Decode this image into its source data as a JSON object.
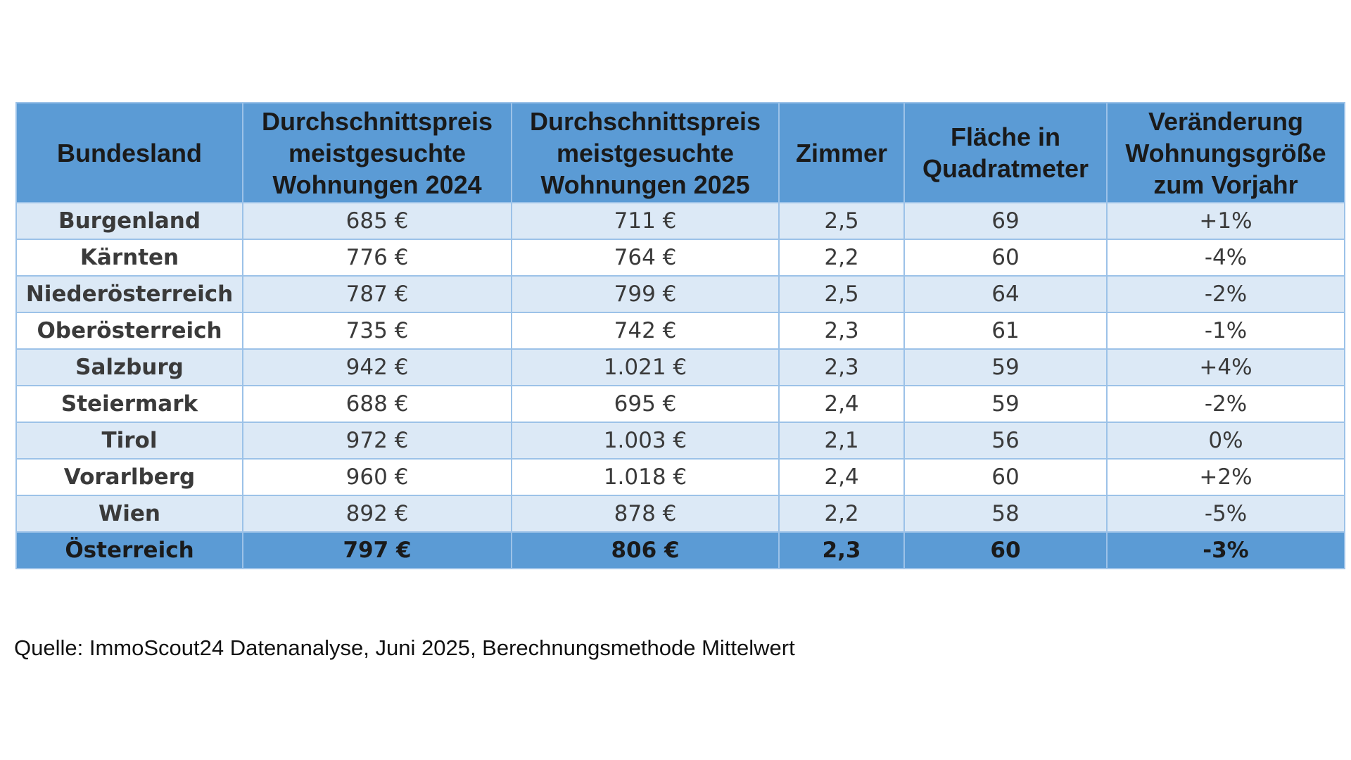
{
  "table": {
    "headers": [
      "Bundesland",
      "Durchschnittspreis meistgesuchte Wohnungen 2024",
      "Durchschnittspreis meistgesuchte Wohnungen 2025",
      "Zimmer",
      "Fläche in Quadratmeter",
      "Veränderung Wohnungsgröße zum Vorjahr"
    ],
    "rows": [
      [
        "Burgenland",
        "685 €",
        "711 €",
        "2,5",
        "69",
        "+1%"
      ],
      [
        "Kärnten",
        "776 €",
        "764 €",
        "2,2",
        "60",
        "-4%"
      ],
      [
        "Niederösterreich",
        "787 €",
        "799 €",
        "2,5",
        "64",
        "-2%"
      ],
      [
        "Oberösterreich",
        "735 €",
        "742 €",
        "2,3",
        "61",
        "-1%"
      ],
      [
        "Salzburg",
        "942 €",
        "1.021 €",
        "2,3",
        "59",
        "+4%"
      ],
      [
        "Steiermark",
        "688 €",
        "695 €",
        "2,4",
        "59",
        "-2%"
      ],
      [
        "Tirol",
        "972 €",
        "1.003 €",
        "2,1",
        "56",
        "0%"
      ],
      [
        "Vorarlberg",
        "960 €",
        "1.018 €",
        "2,4",
        "60",
        "+2%"
      ],
      [
        "Wien",
        "892 €",
        "878 €",
        "2,2",
        "58",
        "-5%"
      ]
    ],
    "total": [
      "Österreich",
      "797 €",
      "806 €",
      "2,3",
      "60",
      "-3%"
    ]
  },
  "source": "Quelle: ImmoScout24 Datenanalyse, Juni 2025, Berechnungsmethode Mittelwert",
  "colors": {
    "header_bg": "#5b9bd5",
    "row_alt_bg": "#dce9f6",
    "border": "#9cc2e8"
  }
}
